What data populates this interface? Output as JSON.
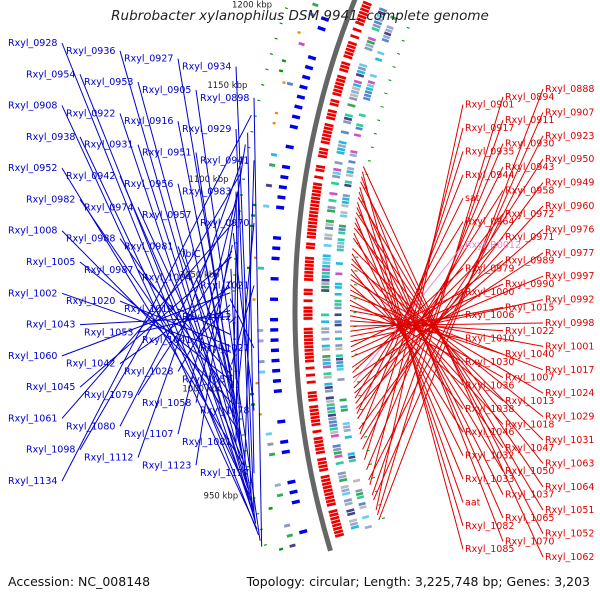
{
  "title": "Rubrobacter xylanophilus DSM 9941, complete genome",
  "accession": "Accession: NC_008148",
  "topology": "Topology: circular; Length: 3,225,748 bp; Genes: 3,203",
  "colors": {
    "left_labels": "#0000cc",
    "right_labels": "#dd0000",
    "rna_label": "#ee88cc",
    "backbone": "#666666",
    "forward_cds": "#ee0000",
    "reverse_cds": "#0000ee",
    "rrna_feature": "#009900",
    "misc_feature": "#ee8800"
  },
  "kbp_ticks": [
    {
      "label": "950 kbp",
      "a": 0.11
    },
    {
      "label": "1000 kbp",
      "a": 0.29
    },
    {
      "label": "1050 kbp",
      "a": 0.48
    },
    {
      "label": "1100 kbp",
      "a": 0.64
    },
    {
      "label": "1150 kbp",
      "a": 0.8
    },
    {
      "label": "1200 kbp",
      "a": 0.94
    }
  ],
  "left_labels": [
    {
      "text": "Rxyl_0928",
      "a": 0.04
    },
    {
      "text": "Rxyl_0936",
      "a": 0.06
    },
    {
      "text": "Rxyl_0927",
      "a": 0.06
    },
    {
      "text": "Rxyl_0934",
      "a": 0.07
    },
    {
      "text": "Rxyl_0954",
      "a": 0.1
    },
    {
      "text": "Rxyl_0953",
      "a": 0.13
    },
    {
      "text": "Rxyl_0905",
      "a": 0.03
    },
    {
      "text": "Rxyl_0898",
      "a": 0.02
    },
    {
      "text": "Rxyl_0908",
      "a": 0.05
    },
    {
      "text": "Rxyl_0922",
      "a": 0.07
    },
    {
      "text": "Rxyl_0916",
      "a": 0.08
    },
    {
      "text": "Rxyl_0929",
      "a": 0.09
    },
    {
      "text": "Rxyl_0938",
      "a": 0.11
    },
    {
      "text": "Rxyl_0931",
      "a": 0.12
    },
    {
      "text": "Rxyl_0951",
      "a": 0.14
    },
    {
      "text": "Rxyl_0941",
      "a": 0.15
    },
    {
      "text": "Rxyl_0952",
      "a": 0.16
    },
    {
      "text": "Rxyl_0942",
      "a": 0.17
    },
    {
      "text": "Rxyl_0956",
      "a": 0.18
    },
    {
      "text": "Rxyl_0983",
      "a": 0.2
    },
    {
      "text": "Rxyl_0982",
      "a": 0.22
    },
    {
      "text": "Rxyl_0974",
      "a": 0.23
    },
    {
      "text": "Rxyl_0957",
      "a": 0.24
    },
    {
      "text": "Rxyl_0970",
      "a": 0.25
    },
    {
      "text": "Rxyl_1008",
      "a": 0.26
    },
    {
      "text": "Rxyl_0988",
      "a": 0.27
    },
    {
      "text": "Rxyl_0981",
      "a": 0.28
    },
    {
      "text": "fbiC",
      "a": 0.29
    },
    {
      "text": "Rxyl_1005",
      "a": 0.3
    },
    {
      "text": "Rxyl_0987",
      "a": 0.31
    },
    {
      "text": "Rxyl_1004",
      "a": 0.32
    },
    {
      "text": "Rxyl_1021",
      "a": 0.33
    },
    {
      "text": "Rxyl_1002",
      "a": 0.35
    },
    {
      "text": "Rxyl_1020",
      "a": 0.36
    },
    {
      "text": "Rxyl_1019",
      "a": 0.38
    },
    {
      "text": "Rxyl_1012",
      "a": 0.4
    },
    {
      "text": "Rxyl_1043",
      "a": 0.41
    },
    {
      "text": "Rxyl_1053",
      "a": 0.42
    },
    {
      "text": "Rxyl_1041",
      "a": 0.43
    },
    {
      "text": "Rxyl_1027",
      "a": 0.44
    },
    {
      "text": "Rxyl_1060",
      "a": 0.45
    },
    {
      "text": "Rxyl_1042",
      "a": 0.46
    },
    {
      "text": "Rxyl_1028",
      "a": 0.47
    },
    {
      "text": "Rxyl_1057",
      "a": 0.49
    },
    {
      "text": "Rxyl_1045",
      "a": 0.51
    },
    {
      "text": "Rxyl_1079",
      "a": 0.52
    },
    {
      "text": "Rxyl_1058",
      "a": 0.53
    },
    {
      "text": "Rxyl_1078",
      "a": 0.55
    },
    {
      "text": "Rxyl_1061",
      "a": 0.57
    },
    {
      "text": "Rxyl_1080",
      "a": 0.6
    },
    {
      "text": "Rxyl_1107",
      "a": 0.62
    },
    {
      "text": "Rxyl_1081",
      "a": 0.63
    },
    {
      "text": "Rxyl_1098",
      "a": 0.65
    },
    {
      "text": "Rxyl_1112",
      "a": 0.68
    },
    {
      "text": "Rxyl_1123",
      "a": 0.7
    },
    {
      "text": "Rxyl_1127",
      "a": 0.72
    },
    {
      "text": "Rxyl_1134",
      "a": 0.75
    }
  ],
  "right_labels": [
    {
      "text": "Rxyl_0888",
      "a": 0.01
    },
    {
      "text": "Rxyl_0894",
      "a": 0.02
    },
    {
      "text": "Rxyl_0901",
      "a": 0.03
    },
    {
      "text": "Rxyl_0907",
      "a": 0.05
    },
    {
      "text": "Rxyl_0911",
      "a": 0.06
    },
    {
      "text": "Rxyl_0917",
      "a": 0.08
    },
    {
      "text": "Rxyl_0923",
      "a": 0.09
    },
    {
      "text": "Rxyl_0930",
      "a": 0.11
    },
    {
      "text": "Rxyl_0935",
      "a": 0.13
    },
    {
      "text": "Rxyl_0950",
      "a": 0.17
    },
    {
      "text": "Rxyl_0943",
      "a": 0.15
    },
    {
      "text": "Rxyl_0944",
      "a": 0.18
    },
    {
      "text": "Rxyl_0949",
      "a": 0.19
    },
    {
      "text": "Rxyl_0958",
      "a": 0.21
    },
    {
      "text": "sat",
      "a": 0.22
    },
    {
      "text": "Rxyl_0960",
      "a": 0.23
    },
    {
      "text": "Rxyl_0972",
      "a": 0.24
    },
    {
      "text": "Rxyl_0964",
      "a": 0.25
    },
    {
      "text": "Rxyl_0976",
      "a": 0.26
    },
    {
      "text": "Rxyl_0971",
      "a": 0.27
    },
    {
      "text": "Rxyl_R0012",
      "a": 0.28,
      "rna": true
    },
    {
      "text": "Rxyl_0977",
      "a": 0.29
    },
    {
      "text": "Rxyl_0989",
      "a": 0.31
    },
    {
      "text": "Rxyl_0979",
      "a": 0.3
    },
    {
      "text": "Rxyl_0997",
      "a": 0.33
    },
    {
      "text": "Rxyl_0990",
      "a": 0.34
    },
    {
      "text": "Rxyl_1000",
      "a": 0.35
    },
    {
      "text": "Rxyl_0992",
      "a": 0.36
    },
    {
      "text": "Rxyl_1015",
      "a": 0.37
    },
    {
      "text": "Rxyl_1006",
      "a": 0.38
    },
    {
      "text": "Rxyl_0998",
      "a": 0.39
    },
    {
      "text": "Rxyl_1022",
      "a": 0.4
    },
    {
      "text": "Rxyl_1010",
      "a": 0.41
    },
    {
      "text": "Rxyl_1001",
      "a": 0.42
    },
    {
      "text": "Rxyl_1040",
      "a": 0.43
    },
    {
      "text": "Rxyl_1030",
      "a": 0.44
    },
    {
      "text": "Rxyl_1017",
      "a": 0.45
    },
    {
      "text": "Rxyl_1007",
      "a": 0.46
    },
    {
      "text": "Rxyl_1036",
      "a": 0.47
    },
    {
      "text": "Rxyl_1024",
      "a": 0.48
    },
    {
      "text": "Rxyl_1013",
      "a": 0.49
    },
    {
      "text": "Rxyl_1038",
      "a": 0.5
    },
    {
      "text": "Rxyl_1029",
      "a": 0.51
    },
    {
      "text": "Rxyl_1018",
      "a": 0.52
    },
    {
      "text": "Rxyl_1046",
      "a": 0.53
    },
    {
      "text": "Rxyl_1031",
      "a": 0.54
    },
    {
      "text": "Rxyl_1047",
      "a": 0.56
    },
    {
      "text": "Rxyl_1032",
      "a": 0.57
    },
    {
      "text": "Rxyl_1063",
      "a": 0.58
    },
    {
      "text": "Rxyl_1050",
      "a": 0.59
    },
    {
      "text": "Rxyl_1033",
      "a": 0.6
    },
    {
      "text": "Rxyl_1064",
      "a": 0.61
    },
    {
      "text": "Rxyl_1037",
      "a": 0.62
    },
    {
      "text": "aat",
      "a": 0.63
    },
    {
      "text": "Rxyl_1051",
      "a": 0.64
    },
    {
      "text": "Rxyl_1065",
      "a": 0.65
    },
    {
      "text": "Rxyl_1082",
      "a": 0.66
    },
    {
      "text": "Rxyl_1052",
      "a": 0.67
    },
    {
      "text": "Rxyl_1070",
      "a": 0.68
    },
    {
      "text": "Rxyl_1085",
      "a": 0.69
    },
    {
      "text": "Rxyl_1062",
      "a": 0.7
    }
  ]
}
